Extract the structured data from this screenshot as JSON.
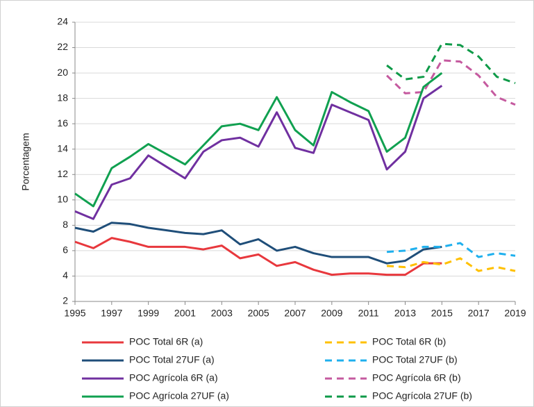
{
  "chart_data": {
    "type": "line",
    "y_label": "Porcentagem",
    "x": [
      1995,
      1996,
      1997,
      1998,
      1999,
      2000,
      2001,
      2002,
      2003,
      2004,
      2005,
      2006,
      2007,
      2008,
      2009,
      2010,
      2011,
      2012,
      2013,
      2014,
      2015,
      2016,
      2017,
      2018,
      2019
    ],
    "xlim": [
      1995,
      2019
    ],
    "xticks": [
      1995,
      1997,
      1999,
      2001,
      2003,
      2005,
      2007,
      2009,
      2011,
      2013,
      2015,
      2017,
      2019
    ],
    "ylim": [
      2,
      24
    ],
    "yticks": [
      2,
      4,
      6,
      8,
      10,
      12,
      14,
      16,
      18,
      20,
      22,
      24
    ],
    "grid": true,
    "legend": "bottom",
    "series": [
      {
        "name": "POC Total 6R (a)",
        "color": "#e8383d",
        "dashed": false,
        "values": [
          6.7,
          6.2,
          7.0,
          6.7,
          6.3,
          6.3,
          6.3,
          6.1,
          6.4,
          5.4,
          5.7,
          4.8,
          5.1,
          4.5,
          4.1,
          4.2,
          4.2,
          4.1,
          4.1,
          5.0,
          5.0,
          null,
          null,
          null,
          null
        ]
      },
      {
        "name": "POC Total 6R (b)",
        "color": "#ffc000",
        "dashed": true,
        "values": [
          null,
          null,
          null,
          null,
          null,
          null,
          null,
          null,
          null,
          null,
          null,
          null,
          null,
          null,
          null,
          null,
          null,
          4.8,
          4.7,
          5.1,
          4.9,
          5.4,
          4.4,
          4.7,
          4.4
        ]
      },
      {
        "name": "POC Total 27UF (a)",
        "color": "#1f4e79",
        "dashed": false,
        "values": [
          7.8,
          7.5,
          8.2,
          8.1,
          7.8,
          7.6,
          7.4,
          7.3,
          7.6,
          6.5,
          6.9,
          6.0,
          6.3,
          5.8,
          5.5,
          5.5,
          5.5,
          5.0,
          5.2,
          6.1,
          6.3,
          null,
          null,
          null,
          null
        ]
      },
      {
        "name": "POC Total 27UF (b)",
        "color": "#1fb0ee",
        "dashed": true,
        "values": [
          null,
          null,
          null,
          null,
          null,
          null,
          null,
          null,
          null,
          null,
          null,
          null,
          null,
          null,
          null,
          null,
          null,
          5.9,
          6.0,
          6.3,
          6.3,
          6.6,
          5.5,
          5.8,
          5.6
        ]
      },
      {
        "name": "POC Agrícola 6R (a)",
        "color": "#7030a0",
        "dashed": false,
        "values": [
          9.1,
          8.5,
          11.2,
          11.7,
          13.5,
          12.6,
          11.7,
          13.8,
          14.7,
          14.9,
          14.2,
          16.9,
          14.1,
          13.7,
          17.5,
          16.9,
          16.3,
          12.4,
          13.8,
          18.0,
          19.0,
          null,
          null,
          null,
          null
        ]
      },
      {
        "name": "POC Agrícola 6R (b)",
        "color": "#c55a9f",
        "dashed": true,
        "values": [
          null,
          null,
          null,
          null,
          null,
          null,
          null,
          null,
          null,
          null,
          null,
          null,
          null,
          null,
          null,
          null,
          null,
          19.8,
          18.4,
          18.5,
          21.0,
          20.9,
          19.8,
          18.1,
          17.5
        ]
      },
      {
        "name": "POC Agrícola 27UF (a)",
        "color": "#10a050",
        "dashed": false,
        "values": [
          10.5,
          9.5,
          12.5,
          13.4,
          14.4,
          13.6,
          12.8,
          14.3,
          15.8,
          16.0,
          15.5,
          18.1,
          15.5,
          14.3,
          18.5,
          17.7,
          17.0,
          13.8,
          14.9,
          18.9,
          20.0,
          null,
          null,
          null,
          null
        ]
      },
      {
        "name": "POC Agrícola 27UF (b)",
        "color": "#0e9a48",
        "dashed": true,
        "values": [
          null,
          null,
          null,
          null,
          null,
          null,
          null,
          null,
          null,
          null,
          null,
          null,
          null,
          null,
          null,
          null,
          null,
          20.6,
          19.5,
          19.7,
          22.3,
          22.2,
          21.3,
          19.7,
          19.2
        ]
      }
    ]
  }
}
